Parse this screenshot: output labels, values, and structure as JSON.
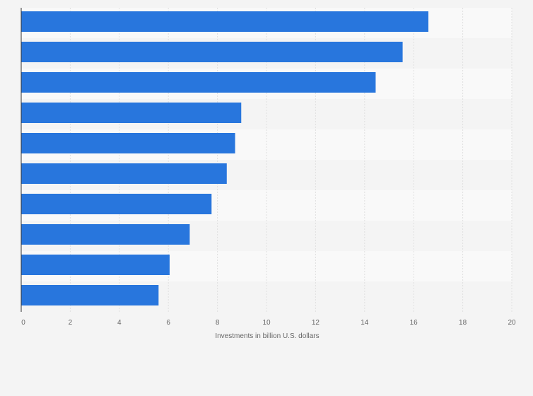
{
  "chart_data": {
    "type": "bar",
    "orientation": "horizontal",
    "title": "",
    "xlabel": "Investments in billion U.S. dollars",
    "ylabel": "",
    "xlim": [
      0,
      20
    ],
    "xticks": [
      "0",
      "2",
      "4",
      "6",
      "8",
      "10",
      "12",
      "14",
      "16",
      "18",
      "20"
    ],
    "categories": [
      "",
      "",
      "",
      "",
      "",
      "",
      "",
      "",
      "",
      ""
    ],
    "values": [
      16.6,
      15.55,
      14.45,
      8.97,
      8.72,
      8.38,
      7.76,
      6.87,
      6.05,
      5.6
    ],
    "grid": true,
    "colors": {
      "bar": "#2876dd",
      "band_light": "#f9f9f9",
      "band_dark": "#f4f4f4",
      "grid": "#e0e0e0",
      "axis": "#333333"
    }
  }
}
